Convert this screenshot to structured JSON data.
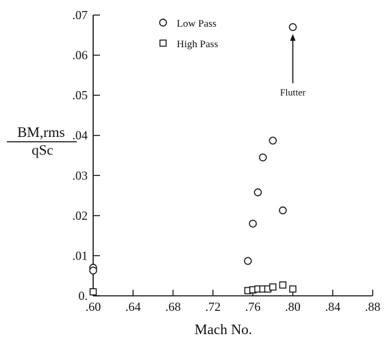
{
  "chart_data": {
    "type": "scatter",
    "xlabel": "Mach No.",
    "ylabel_numerator": "BM,rms",
    "ylabel_denominator": "qSc",
    "xlim": [
      0.6,
      0.88
    ],
    "ylim": [
      0.0,
      0.07
    ],
    "x_ticks": [
      ".60",
      ".64",
      ".68",
      ".72",
      ".76",
      ".80",
      ".84",
      ".88"
    ],
    "y_ticks": [
      "0.",
      ".01",
      ".02",
      ".03",
      ".04",
      ".05",
      ".06",
      ".07"
    ],
    "grid": false,
    "legend_position": "top-center",
    "series": [
      {
        "name": "Low Pass",
        "marker": "circle",
        "points": [
          [
            0.6,
            0.007
          ],
          [
            0.6,
            0.0063
          ],
          [
            0.755,
            0.0087
          ],
          [
            0.76,
            0.018
          ],
          [
            0.765,
            0.0258
          ],
          [
            0.77,
            0.0345
          ],
          [
            0.78,
            0.0387
          ],
          [
            0.79,
            0.0213
          ],
          [
            0.8,
            0.067
          ]
        ]
      },
      {
        "name": "High Pass",
        "marker": "square",
        "points": [
          [
            0.6,
            0.001
          ],
          [
            0.755,
            0.0013
          ],
          [
            0.76,
            0.0015
          ],
          [
            0.765,
            0.0017
          ],
          [
            0.77,
            0.0017
          ],
          [
            0.775,
            0.0017
          ],
          [
            0.78,
            0.0022
          ],
          [
            0.79,
            0.0027
          ],
          [
            0.8,
            0.0017
          ]
        ]
      }
    ],
    "annotations": [
      {
        "text": "Flutter",
        "x": 0.8,
        "y": 0.067
      }
    ]
  }
}
